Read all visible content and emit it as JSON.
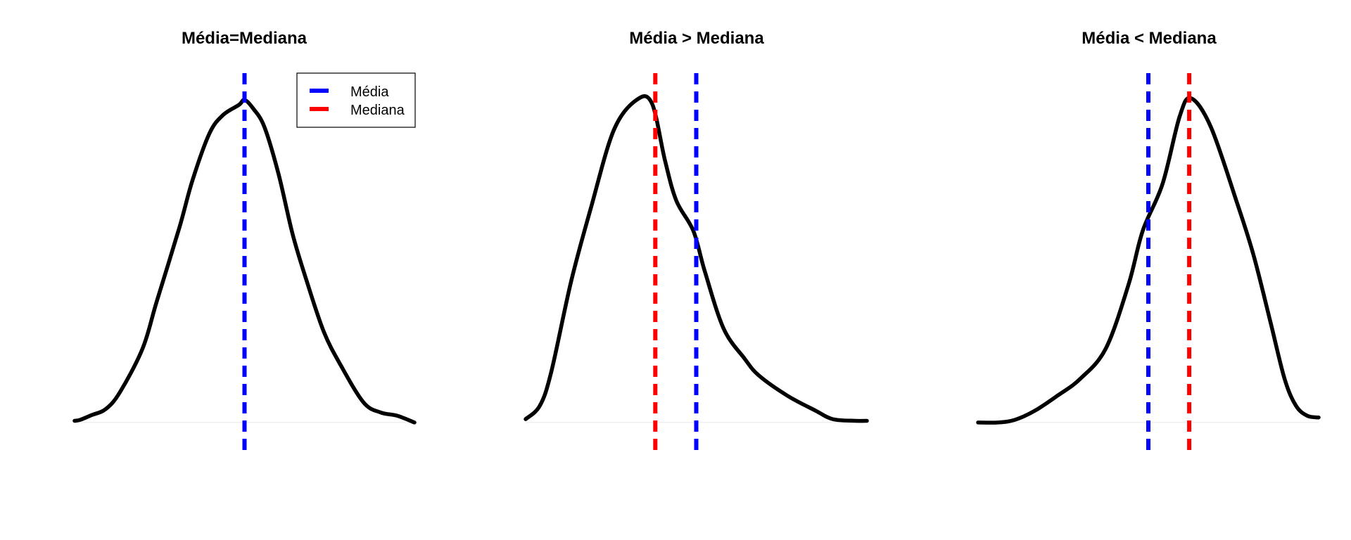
{
  "chart_data": [
    {
      "type": "line",
      "title": "Média=Mediana",
      "x": [
        -3.0,
        -2.9,
        -2.7,
        -2.45,
        -2.2,
        -1.8,
        -1.55,
        -1.15,
        -0.92,
        -0.62,
        -0.38,
        -0.1,
        0.0,
        0.15,
        0.35,
        0.6,
        0.85,
        1.1,
        1.4,
        1.7,
        2.1,
        2.4,
        2.7,
        3.0
      ],
      "y": [
        0.005,
        0.008,
        0.022,
        0.04,
        0.09,
        0.22,
        0.36,
        0.58,
        0.72,
        0.86,
        0.915,
        0.945,
        0.96,
        0.935,
        0.88,
        0.74,
        0.56,
        0.42,
        0.27,
        0.17,
        0.06,
        0.03,
        0.02,
        0.0
      ],
      "xlim": [
        -3.0,
        3.0
      ],
      "ylim": [
        -0.04,
        1.0
      ],
      "mean": 0.0,
      "median": 0.0,
      "legend": [
        {
          "label": "Média",
          "color": "#0000ff"
        },
        {
          "label": "Mediana",
          "color": "#ff0000"
        }
      ],
      "legend_position": "top-right",
      "axes_visible": false,
      "grid": false
    },
    {
      "type": "line",
      "title": "Média > Mediana",
      "x": [
        -3.0,
        -2.75,
        -2.55,
        -2.2,
        -1.85,
        -1.45,
        -1.05,
        -0.78,
        -0.55,
        -0.35,
        -0.05,
        0.15,
        0.48,
        0.85,
        1.1,
        1.6,
        2.1,
        2.4,
        2.8,
        3.0
      ],
      "y": [
        0.01,
        0.05,
        0.15,
        0.42,
        0.64,
        0.87,
        0.96,
        0.95,
        0.78,
        0.66,
        0.57,
        0.45,
        0.28,
        0.19,
        0.14,
        0.08,
        0.035,
        0.01,
        0.005,
        0.005
      ],
      "xlim": [
        -3.0,
        3.0
      ],
      "ylim": [
        -0.04,
        1.0
      ],
      "mean": 0.0,
      "median": -0.72,
      "axes_visible": false,
      "grid": false
    },
    {
      "type": "line",
      "title": "Média < Mediana",
      "x": [
        -3.0,
        -2.65,
        -2.35,
        -2.0,
        -1.6,
        -1.2,
        -0.75,
        -0.35,
        -0.1,
        0.25,
        0.55,
        0.75,
        1.1,
        1.55,
        1.85,
        2.15,
        2.4,
        2.6,
        2.8,
        3.0
      ],
      "y": [
        0.0,
        0.0,
        0.008,
        0.035,
        0.08,
        0.13,
        0.22,
        0.41,
        0.57,
        0.71,
        0.91,
        0.965,
        0.88,
        0.66,
        0.5,
        0.3,
        0.13,
        0.05,
        0.02,
        0.015
      ],
      "xlim": [
        -3.0,
        3.0
      ],
      "ylim": [
        -0.04,
        1.0
      ],
      "mean": 0.0,
      "median": 0.72,
      "axes_visible": false,
      "grid": false
    }
  ],
  "colors": {
    "density": "#000000",
    "mean_line": "#0000ff",
    "median_line": "#ff0000",
    "baseline": "#e8e8e8",
    "background": "#ffffff"
  }
}
